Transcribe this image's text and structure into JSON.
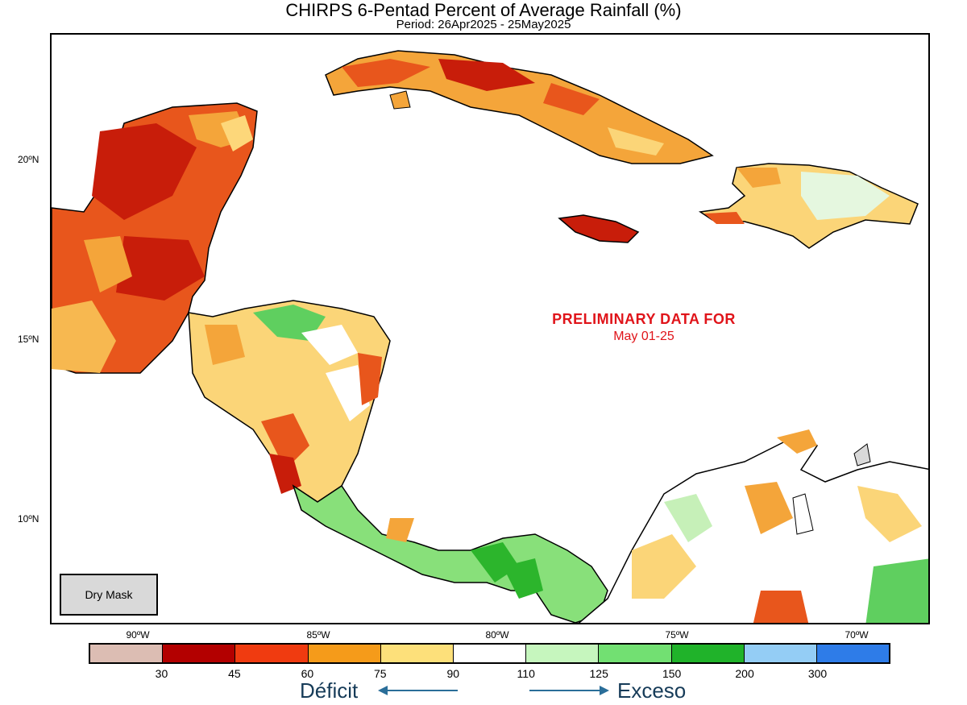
{
  "title": "CHIRPS 6-Pentad Percent of Average Rainfall (%)",
  "subtitle": "Period: 26Apr2025 - 25May2025",
  "latitude_labels": [
    "20ºN",
    "15ºN",
    "10ºN"
  ],
  "longitude_labels": [
    "90ºW",
    "85ºW",
    "80ºW",
    "75ºW",
    "70ºW"
  ],
  "overlay": {
    "line1": "PRELIMINARY DATA FOR",
    "line2": "May 01-25",
    "color": "#e0141a"
  },
  "dry_mask_label": "Dry Mask",
  "colorbar": {
    "colors": [
      "#dcbdb3",
      "#b30000",
      "#f03b10",
      "#f59b1a",
      "#fde07a",
      "#ffffff",
      "#c6f6be",
      "#72e072",
      "#20b32a",
      "#94cdf5",
      "#2e7ce8"
    ],
    "tick_labels": [
      "30",
      "45",
      "60",
      "75",
      "90",
      "110",
      "125",
      "150",
      "200",
      "300"
    ]
  },
  "legend": {
    "deficit": "Déficit",
    "excess": "Exceso"
  }
}
